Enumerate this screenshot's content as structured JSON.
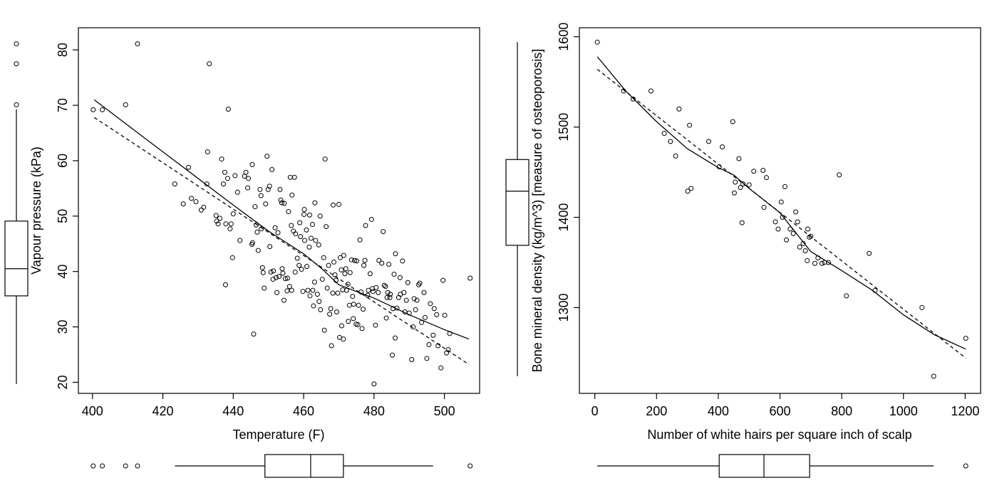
{
  "chart_data": [
    {
      "type": "scatter",
      "xlabel": "Temperature (F)",
      "ylabel": "Vapour pressure (kPa)",
      "xlim": [
        396,
        510
      ],
      "ylim": [
        18,
        84
      ],
      "xticks": [
        400,
        420,
        440,
        460,
        480,
        500
      ],
      "yticks": [
        20,
        30,
        40,
        50,
        60,
        70,
        80
      ],
      "grid": false,
      "points": [
        [
          400.2,
          69.2
        ],
        [
          402.8,
          69.2
        ],
        [
          409.4,
          70.1
        ],
        [
          412.8,
          81.1
        ],
        [
          423.4,
          55.8
        ],
        [
          425.8,
          52.2
        ],
        [
          427.3,
          58.8
        ],
        [
          428.1,
          53.2
        ],
        [
          429.4,
          52.6
        ],
        [
          430.9,
          51.1
        ],
        [
          431.6,
          51.6
        ],
        [
          432.5,
          55.8
        ],
        [
          432.7,
          61.6
        ],
        [
          433.2,
          77.5
        ],
        [
          435.1,
          50.1
        ],
        [
          435.3,
          49.1
        ],
        [
          435.7,
          48.6
        ],
        [
          436.2,
          49.6
        ],
        [
          436.7,
          60.3
        ],
        [
          437.2,
          55.8
        ],
        [
          437.6,
          57.9
        ],
        [
          437.8,
          37.6
        ],
        [
          437.9,
          48.6
        ],
        [
          438.4,
          56.8
        ],
        [
          438.6,
          69.3
        ],
        [
          439.1,
          47.7
        ],
        [
          439.4,
          48.6
        ],
        [
          439.8,
          42.5
        ],
        [
          440.0,
          50.4
        ],
        [
          440.5,
          57.3
        ],
        [
          441.2,
          54.3
        ],
        [
          441.9,
          45.6
        ],
        [
          443.2,
          57.2
        ],
        [
          443.6,
          57.9
        ],
        [
          444.1,
          55.1
        ],
        [
          444.3,
          56.8
        ],
        [
          445.3,
          44.9
        ],
        [
          445.4,
          59.3
        ],
        [
          445.5,
          45.2
        ],
        [
          445.8,
          28.7
        ],
        [
          446.2,
          51.7
        ],
        [
          446.5,
          48.4
        ],
        [
          446.8,
          47.1
        ],
        [
          447.1,
          43.8
        ],
        [
          447.6,
          54.8
        ],
        [
          447.9,
          53.7
        ],
        [
          448.0,
          47.7
        ],
        [
          448.3,
          40.7
        ],
        [
          448.5,
          39.8
        ],
        [
          448.8,
          37.0
        ],
        [
          449.2,
          52.2
        ],
        [
          449.6,
          60.8
        ],
        [
          449.9,
          54.8
        ],
        [
          450.3,
          55.4
        ],
        [
          450.4,
          44.5
        ],
        [
          450.7,
          39.9
        ],
        [
          451.0,
          58.4
        ],
        [
          451.3,
          38.6
        ],
        [
          451.4,
          40.1
        ],
        [
          451.9,
          47.9
        ],
        [
          452.2,
          38.9
        ],
        [
          452.4,
          36.2
        ],
        [
          452.7,
          47.0
        ],
        [
          453.0,
          39.1
        ],
        [
          453.3,
          54.8
        ],
        [
          453.5,
          52.9
        ],
        [
          453.8,
          52.4
        ],
        [
          453.9,
          40.5
        ],
        [
          454.1,
          39.7
        ],
        [
          454.4,
          34.8
        ],
        [
          454.5,
          52.3
        ],
        [
          454.8,
          38.7
        ],
        [
          455.3,
          36.5
        ],
        [
          455.4,
          38.8
        ],
        [
          455.7,
          50.8
        ],
        [
          456.0,
          37.3
        ],
        [
          456.2,
          57.0
        ],
        [
          456.5,
          48.3
        ],
        [
          456.6,
          36.6
        ],
        [
          456.7,
          53.8
        ],
        [
          457.1,
          47.3
        ],
        [
          457.4,
          57.0
        ],
        [
          457.6,
          39.9
        ],
        [
          457.7,
          46.8
        ],
        [
          458.2,
          42.4
        ],
        [
          458.7,
          41.1
        ],
        [
          458.9,
          48.8
        ],
        [
          459.1,
          46.3
        ],
        [
          459.4,
          40.4
        ],
        [
          459.8,
          36.4
        ],
        [
          460.1,
          50.3
        ],
        [
          460.2,
          51.2
        ],
        [
          460.3,
          45.6
        ],
        [
          460.8,
          47.5
        ],
        [
          460.9,
          40.9
        ],
        [
          461.2,
          36.6
        ],
        [
          461.6,
          44.4
        ],
        [
          461.7,
          50.2
        ],
        [
          461.8,
          35.6
        ],
        [
          462.1,
          46.0
        ],
        [
          462.5,
          48.5
        ],
        [
          462.6,
          36.6
        ],
        [
          462.8,
          33.8
        ],
        [
          463.1,
          38.1
        ],
        [
          463.2,
          52.4
        ],
        [
          463.4,
          45.6
        ],
        [
          463.9,
          35.9
        ],
        [
          464.3,
          44.8
        ],
        [
          464.4,
          34.6
        ],
        [
          464.7,
          50.0
        ],
        [
          464.8,
          33.1
        ],
        [
          465.3,
          38.6
        ],
        [
          465.7,
          42.5
        ],
        [
          465.9,
          29.4
        ],
        [
          466.1,
          60.3
        ],
        [
          466.4,
          48.1
        ],
        [
          466.7,
          37.0
        ],
        [
          467.1,
          41.1
        ],
        [
          467.4,
          32.3
        ],
        [
          467.7,
          33.3
        ],
        [
          467.9,
          26.6
        ],
        [
          468.3,
          36.1
        ],
        [
          468.4,
          52.0
        ],
        [
          468.6,
          41.7
        ],
        [
          468.9,
          39.4
        ],
        [
          469.2,
          38.4
        ],
        [
          469.4,
          32.7
        ],
        [
          469.7,
          36.1
        ],
        [
          470.0,
          52.1
        ],
        [
          470.2,
          28.1
        ],
        [
          470.4,
          42.5
        ],
        [
          470.7,
          40.3
        ],
        [
          470.8,
          30.2
        ],
        [
          471.1,
          36.7
        ],
        [
          471.3,
          27.8
        ],
        [
          471.4,
          42.9
        ],
        [
          471.7,
          39.6
        ],
        [
          472.0,
          40.5
        ],
        [
          472.2,
          36.6
        ],
        [
          472.6,
          37.7
        ],
        [
          472.7,
          31.0
        ],
        [
          473.0,
          33.9
        ],
        [
          473.2,
          39.8
        ],
        [
          473.6,
          42.1
        ],
        [
          473.9,
          35.5
        ],
        [
          474.1,
          31.5
        ],
        [
          474.2,
          34.1
        ],
        [
          474.5,
          42.0
        ],
        [
          474.9,
          30.5
        ],
        [
          475.1,
          41.9
        ],
        [
          475.4,
          30.4
        ],
        [
          475.6,
          33.9
        ],
        [
          476.0,
          45.7
        ],
        [
          476.3,
          36.3
        ],
        [
          476.6,
          29.7
        ],
        [
          476.9,
          33.2
        ],
        [
          477.1,
          41.1
        ],
        [
          477.4,
          42.0
        ],
        [
          477.6,
          48.3
        ],
        [
          478.2,
          35.7
        ],
        [
          478.4,
          36.6
        ],
        [
          478.9,
          39.6
        ],
        [
          479.3,
          49.4
        ],
        [
          479.5,
          36.9
        ],
        [
          479.7,
          36.4
        ],
        [
          480.0,
          19.7
        ],
        [
          480.4,
          30.3
        ],
        [
          480.6,
          37.1
        ],
        [
          481.2,
          36.2
        ],
        [
          481.4,
          42.0
        ],
        [
          482.2,
          41.5
        ],
        [
          482.6,
          47.2
        ],
        [
          482.9,
          37.5
        ],
        [
          483.3,
          37.3
        ],
        [
          483.5,
          31.6
        ],
        [
          483.7,
          35.3
        ],
        [
          483.9,
          36.2
        ],
        [
          484.2,
          41.3
        ],
        [
          484.5,
          35.3
        ],
        [
          484.6,
          35.9
        ],
        [
          485.2,
          24.9
        ],
        [
          485.4,
          33.3
        ],
        [
          485.7,
          39.5
        ],
        [
          486.0,
          28.0
        ],
        [
          486.1,
          43.2
        ],
        [
          486.5,
          33.4
        ],
        [
          487.0,
          35.3
        ],
        [
          487.4,
          38.9
        ],
        [
          487.5,
          35.9
        ],
        [
          488.1,
          41.9
        ],
        [
          488.5,
          36.2
        ],
        [
          488.8,
          32.7
        ],
        [
          489.2,
          34.8
        ],
        [
          489.6,
          38.0
        ],
        [
          490.0,
          32.5
        ],
        [
          490.7,
          24.1
        ],
        [
          491.1,
          30.0
        ],
        [
          491.4,
          35.1
        ],
        [
          491.8,
          33.1
        ],
        [
          492.2,
          34.8
        ],
        [
          492.7,
          37.6
        ],
        [
          493.0,
          37.9
        ],
        [
          493.5,
          30.8
        ],
        [
          494.2,
          36.2
        ],
        [
          494.5,
          31.7
        ],
        [
          495.0,
          24.3
        ],
        [
          495.6,
          26.8
        ],
        [
          496.0,
          34.2
        ],
        [
          496.8,
          28.5
        ],
        [
          497.1,
          33.3
        ],
        [
          497.8,
          32.2
        ],
        [
          498.2,
          26.6
        ],
        [
          499.0,
          22.6
        ],
        [
          499.6,
          38.4
        ],
        [
          500.1,
          32.1
        ],
        [
          500.6,
          25.3
        ],
        [
          501.1,
          25.9
        ],
        [
          501.5,
          28.8
        ],
        [
          507.3,
          38.8
        ]
      ],
      "smooth_line": [
        [
          400.5,
          71.0
        ],
        [
          415,
          64.0
        ],
        [
          430,
          56.8
        ],
        [
          440,
          52.0
        ],
        [
          450,
          47.3
        ],
        [
          460,
          43.2
        ],
        [
          465,
          40.6
        ],
        [
          470,
          37.6
        ],
        [
          480,
          35.2
        ],
        [
          490,
          32.2
        ],
        [
          500,
          29.5
        ],
        [
          507,
          27.8
        ]
      ],
      "fit_line": [
        [
          400.5,
          67.8
        ],
        [
          507,
          23.2
        ]
      ],
      "boxplot_x": {
        "whisker_low": 423.4,
        "q1": 449.0,
        "median": 462.0,
        "q3": 471.3,
        "whisker_high": 496.8,
        "outliers": [
          400.2,
          402.8,
          409.4,
          412.8,
          507.3
        ]
      },
      "boxplot_y": {
        "whisker_low": 19.7,
        "q1": 35.6,
        "median": 40.5,
        "q3": 49.1,
        "whisker_high": 69.3,
        "outliers": [
          70.1,
          77.5,
          81.1
        ]
      }
    },
    {
      "type": "scatter",
      "xlabel": "Number of white hairs per square inch of scalp",
      "ylabel": "Bone mineral density (kg/m^3) [measure of osteoporosis]",
      "xlim": [
        -50,
        1250
      ],
      "ylim": [
        1205,
        1610
      ],
      "xticks": [
        0,
        200,
        400,
        600,
        800,
        1000,
        1200
      ],
      "yticks": [
        1300,
        1400,
        1500,
        1600
      ],
      "grid": false,
      "points": [
        [
          8,
          1594
        ],
        [
          93,
          1540
        ],
        [
          124,
          1531
        ],
        [
          182,
          1540
        ],
        [
          225,
          1493
        ],
        [
          245,
          1484
        ],
        [
          262,
          1468
        ],
        [
          273,
          1520
        ],
        [
          301,
          1429
        ],
        [
          307,
          1502
        ],
        [
          312,
          1432
        ],
        [
          369,
          1484
        ],
        [
          403,
          1456
        ],
        [
          413,
          1478
        ],
        [
          447,
          1506
        ],
        [
          452,
          1427
        ],
        [
          455,
          1439
        ],
        [
          467,
          1465
        ],
        [
          472,
          1433
        ],
        [
          477,
          1394
        ],
        [
          480,
          1437
        ],
        [
          500,
          1436
        ],
        [
          515,
          1451
        ],
        [
          545,
          1452
        ],
        [
          548,
          1411
        ],
        [
          556,
          1444
        ],
        [
          585,
          1395
        ],
        [
          594,
          1387
        ],
        [
          604,
          1417
        ],
        [
          608,
          1400
        ],
        [
          616,
          1434
        ],
        [
          621,
          1375
        ],
        [
          633,
          1387
        ],
        [
          643,
          1382
        ],
        [
          651,
          1406
        ],
        [
          657,
          1395
        ],
        [
          664,
          1367
        ],
        [
          675,
          1371
        ],
        [
          682,
          1363
        ],
        [
          688,
          1352
        ],
        [
          690,
          1387
        ],
        [
          695,
          1378
        ],
        [
          700,
          1379
        ],
        [
          713,
          1349
        ],
        [
          723,
          1355
        ],
        [
          736,
          1349
        ],
        [
          744,
          1350
        ],
        [
          757,
          1350
        ],
        [
          792,
          1447
        ],
        [
          815,
          1313
        ],
        [
          889,
          1360
        ],
        [
          908,
          1319
        ],
        [
          1060,
          1300
        ],
        [
          1098,
          1224
        ],
        [
          1202,
          1266
        ]
      ],
      "smooth_line": [
        [
          8,
          1578
        ],
        [
          100,
          1540
        ],
        [
          200,
          1506
        ],
        [
          300,
          1476
        ],
        [
          400,
          1455
        ],
        [
          450,
          1447
        ],
        [
          500,
          1432
        ],
        [
          600,
          1405
        ],
        [
          700,
          1362
        ],
        [
          800,
          1341
        ],
        [
          900,
          1319
        ],
        [
          1000,
          1292
        ],
        [
          1100,
          1270
        ],
        [
          1202,
          1254
        ]
      ],
      "fit_line": [
        [
          8,
          1564
        ],
        [
          1202,
          1244
        ]
      ],
      "boxplot_x": {
        "whisker_low": 8,
        "q1": 403,
        "median": 548,
        "q3": 696,
        "whisker_high": 1098,
        "outliers": [
          1202
        ]
      },
      "boxplot_y": {
        "whisker_low": 1224,
        "q1": 1369,
        "median": 1429,
        "q3": 1464,
        "whisker_high": 1594,
        "outliers": []
      }
    }
  ]
}
